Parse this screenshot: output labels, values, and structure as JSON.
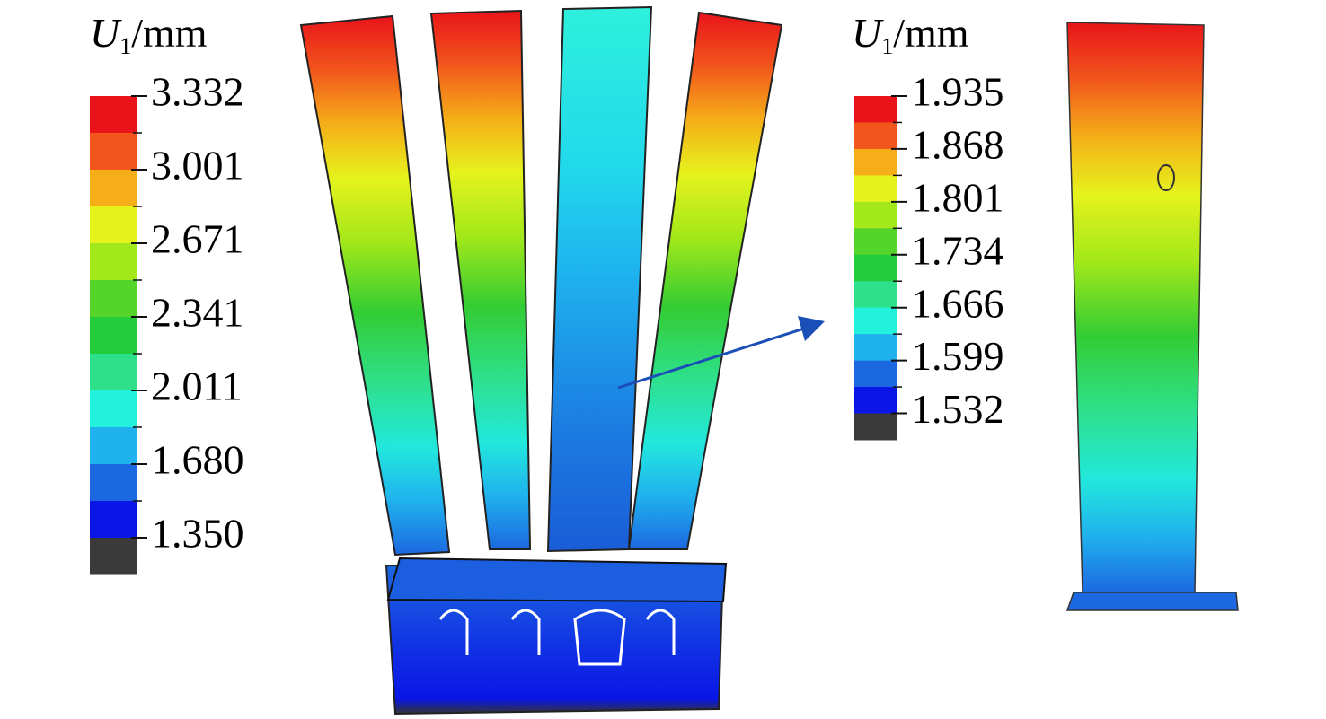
{
  "legends": [
    {
      "title": {
        "symbol": "U",
        "subscript": "1",
        "unit": "/mm"
      },
      "labels": [
        "3.332",
        "3.001",
        "2.671",
        "2.341",
        "2.011",
        "1.680",
        "1.350"
      ]
    },
    {
      "title": {
        "symbol": "U",
        "subscript": "1",
        "unit": "/mm"
      },
      "labels": [
        "1.935",
        "1.868",
        "1.801",
        "1.734",
        "1.666",
        "1.599",
        "1.532"
      ]
    }
  ],
  "band_colors": [
    "#e8141a",
    "#f2561c",
    "#f5ae18",
    "#e6f21c",
    "#a2e81a",
    "#55d42a",
    "#22cc3a",
    "#2ee08a",
    "#22f2dc",
    "#20b2ee",
    "#1c68e0",
    "#0a16e6",
    "#3a3a3a"
  ]
}
